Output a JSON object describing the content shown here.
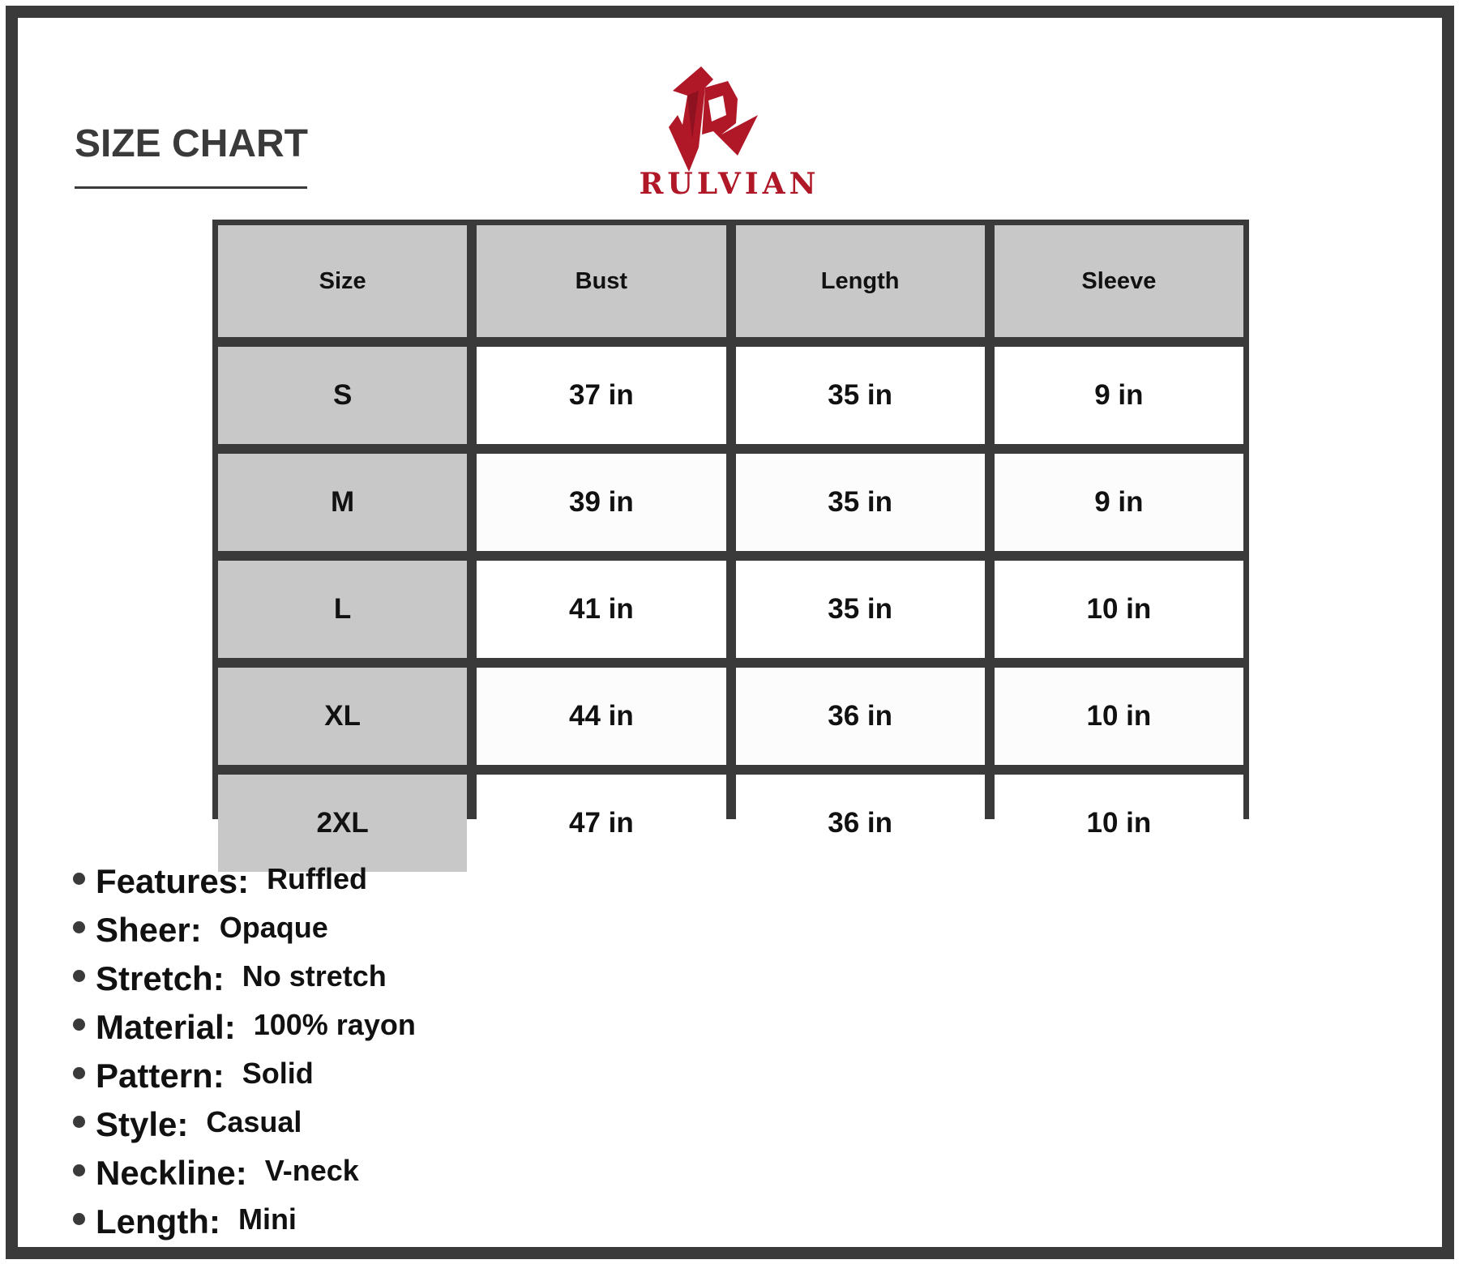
{
  "title": "SIZE CHART",
  "brand": {
    "name": "RULVIAN",
    "color": "#b01828"
  },
  "table": {
    "headers": [
      "Size",
      "Bust",
      "Length",
      "Sleeve"
    ],
    "rows": [
      [
        "S",
        "37 in",
        "35 in",
        "9 in"
      ],
      [
        "M",
        "39 in",
        "35 in",
        "9 in"
      ],
      [
        "L",
        "41 in",
        "35 in",
        "10 in"
      ],
      [
        "XL",
        "44 in",
        "36 in",
        "10 in"
      ],
      [
        "2XL",
        "47 in",
        "36 in",
        "10 in"
      ]
    ]
  },
  "specs": [
    {
      "label": "Features:",
      "value": "Ruffled"
    },
    {
      "label": "Sheer:",
      "value": "Opaque"
    },
    {
      "label": "Stretch:",
      "value": "No stretch"
    },
    {
      "label": "Material:",
      "value": "100% rayon"
    },
    {
      "label": "Pattern:",
      "value": "Solid"
    },
    {
      "label": "Style:",
      "value": "Casual"
    },
    {
      "label": "Neckline:",
      "value": "V-neck"
    },
    {
      "label": "Length:",
      "value": "Mini"
    }
  ]
}
